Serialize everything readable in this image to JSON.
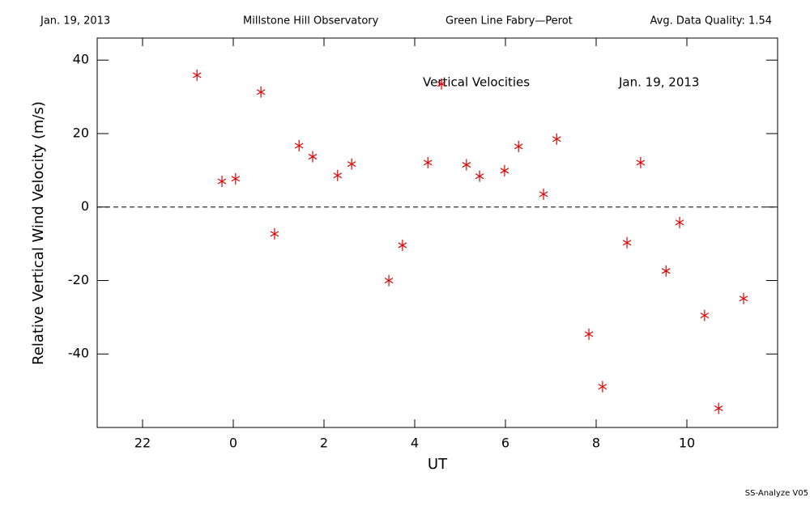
{
  "chart_data": {
    "type": "scatter",
    "header": [
      "Jan. 19, 2013",
      "Millstone Hill Observatory",
      "Green Line Fabry—Perot",
      "Avg. Data Quality: 1.54"
    ],
    "annotations": [
      "Vertical Velocities",
      "Jan. 19, 2013"
    ],
    "footer": "SS-Analyze V05",
    "xlabel": "UT",
    "ylabel": "Relative Vertical Wind Velocity (m/s)",
    "color": "#e00000",
    "x": [
      -0.8,
      -0.25,
      0.05,
      0.61,
      0.91,
      1.45,
      1.75,
      2.3,
      2.61,
      3.43,
      3.73,
      4.29,
      4.59,
      5.14,
      5.43,
      5.98,
      6.29,
      6.84,
      7.13,
      7.84,
      8.14,
      8.68,
      8.98,
      9.54,
      9.84,
      10.39,
      10.7,
      11.25
    ],
    "values": [
      35.9,
      7.0,
      7.7,
      31.3,
      -7.3,
      16.7,
      13.7,
      8.6,
      11.7,
      -20.0,
      -10.4,
      12.1,
      33.5,
      11.5,
      8.4,
      9.9,
      16.5,
      3.5,
      18.5,
      -34.6,
      -48.9,
      -9.7,
      12.1,
      -17.4,
      -4.2,
      -29.5,
      -54.8,
      -24.9
    ],
    "xlim": [
      -3,
      12
    ],
    "xticks": [
      {
        "value": -2,
        "label": "22"
      },
      0,
      2,
      4,
      6,
      8,
      10
    ],
    "ylim": [
      -60,
      46
    ],
    "yticks": [
      -40,
      -20,
      0,
      20,
      40
    ],
    "hline": 0
  }
}
